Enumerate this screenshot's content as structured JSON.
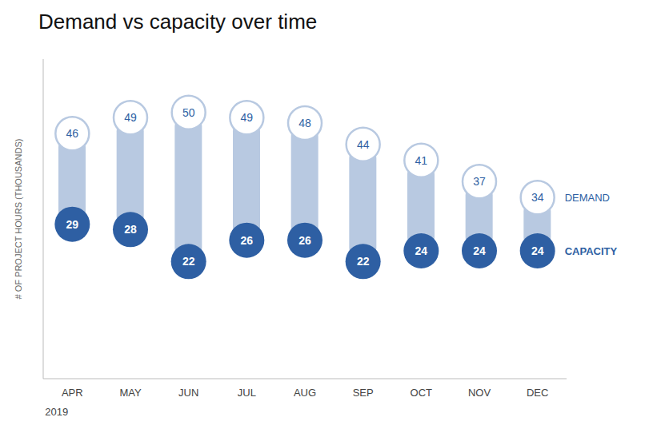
{
  "chart_data": {
    "type": "dumbbell",
    "title": "Demand vs capacity over time",
    "categories": [
      "APR",
      "MAY",
      "JUN",
      "JUL",
      "AUG",
      "SEP",
      "OCT",
      "NOV",
      "DEC"
    ],
    "series": [
      {
        "name": "DEMAND",
        "color": "#b8c9e1",
        "values": [
          46,
          49,
          50,
          49,
          48,
          44,
          41,
          37,
          34
        ]
      },
      {
        "name": "CAPACITY",
        "color": "#2e5fa3",
        "values": [
          29,
          28,
          22,
          26,
          26,
          22,
          24,
          24,
          24
        ]
      }
    ],
    "color": "#b8c9e1",
    "ylabel": "# OF PROJECT HOURS (THOUSANDS)",
    "annotations": [
      "2019"
    ],
    "ylim": [
      0,
      60
    ],
    "data_labels": true,
    "tick_labels": "x",
    "grid": false
  }
}
